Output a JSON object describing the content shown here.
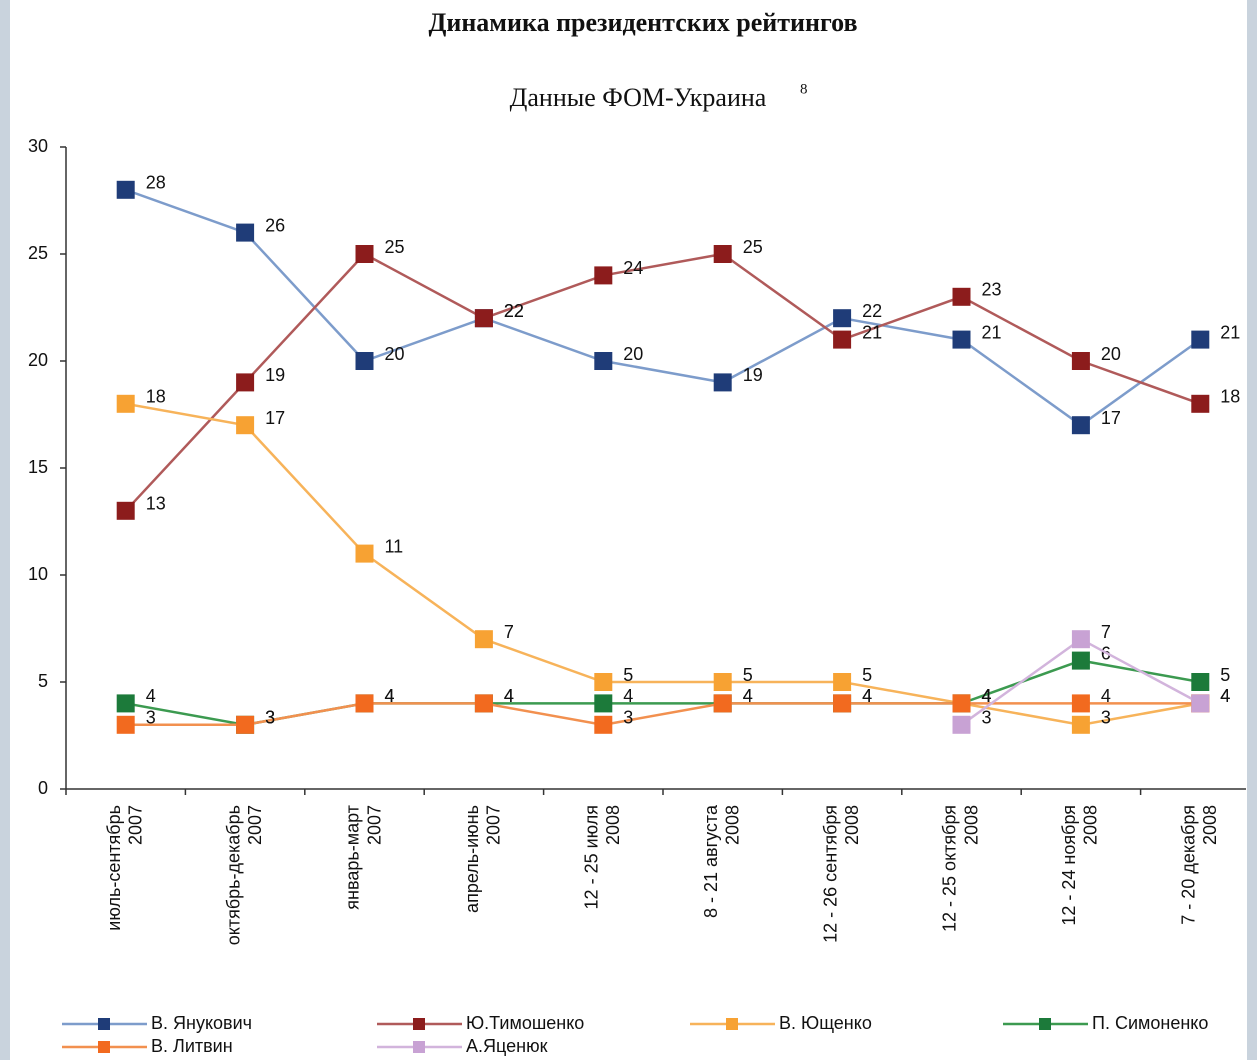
{
  "chart_data": {
    "type": "line",
    "title": "Динамика президентских рейтингов",
    "subtitle": "Данные ФОМ-Украина",
    "footnote_mark": "8",
    "categories": [
      "июль-сентябрь 2007",
      "октябрь-декабрь 2007",
      "январь-март 2007",
      "апрель-июнь 2007",
      "12 - 25 июля 2008",
      "8 - 21 августа 2008",
      "12 - 26 сентября 2008",
      "12 - 25 октября 2008",
      "12 - 24 ноября 2008",
      "7 - 20 декабря 2008"
    ],
    "ylim": [
      0,
      30
    ],
    "yticks": [
      0,
      5,
      10,
      15,
      20,
      25,
      30
    ],
    "grid": false,
    "legend": "bottom",
    "series": [
      {
        "name": "В. Янукович",
        "color": "#1f3c78",
        "line_color": "#7d9ccb",
        "values": [
          28,
          26,
          20,
          22,
          20,
          19,
          22,
          21,
          17,
          21
        ]
      },
      {
        "name": "Ю.Тимошенко",
        "color": "#8c1c1c",
        "line_color": "#b05a5a",
        "values": [
          13,
          19,
          25,
          22,
          24,
          25,
          21,
          23,
          20,
          18
        ]
      },
      {
        "name": "В. Ющенко",
        "color": "#f7a233",
        "line_color": "#f7b35a",
        "values": [
          18,
          17,
          11,
          7,
          5,
          5,
          5,
          4,
          3,
          4
        ]
      },
      {
        "name": "П. Симоненко",
        "color": "#1c7a3a",
        "line_color": "#3c9a50",
        "values": [
          4,
          3,
          4,
          4,
          4,
          4,
          4,
          4,
          6,
          5
        ]
      },
      {
        "name": "В. Литвин",
        "color": "#f26a1f",
        "line_color": "#f2904f",
        "values": [
          3,
          3,
          4,
          4,
          3,
          4,
          4,
          4,
          4,
          4
        ]
      },
      {
        "name": "А.Яценюк",
        "color": "#c8a2d4",
        "line_color": "#d2b4dc",
        "values": [
          null,
          null,
          null,
          null,
          null,
          null,
          null,
          3,
          7,
          4
        ]
      }
    ]
  }
}
